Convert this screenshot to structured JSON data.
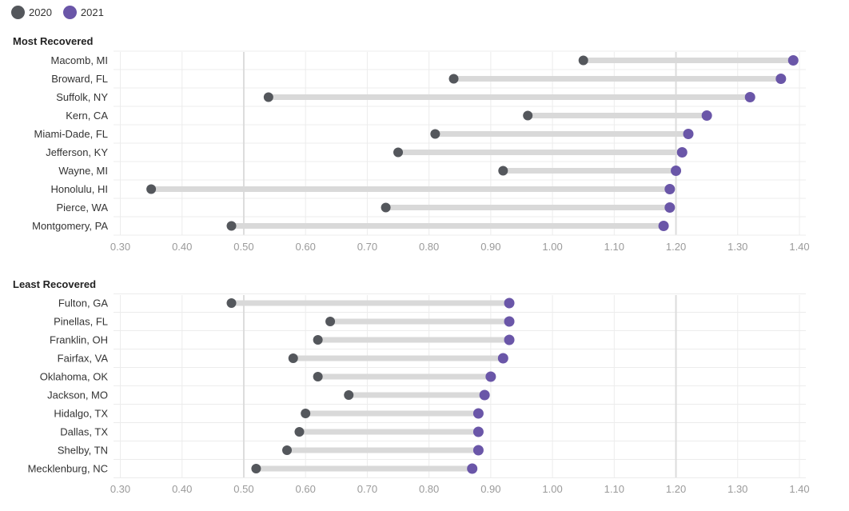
{
  "legend": {
    "items": [
      {
        "label": "2020",
        "color": "#54575c"
      },
      {
        "label": "2021",
        "color": "#6a56a8"
      }
    ]
  },
  "chart_data": [
    {
      "type": "dumbbell",
      "title": "Most Recovered",
      "xlim": [
        0.3,
        1.4
      ],
      "xticks": [
        "0.30",
        "0.40",
        "0.50",
        "0.60",
        "0.70",
        "0.80",
        "0.90",
        "1.00",
        "1.10",
        "1.20",
        "1.30",
        "1.40"
      ],
      "categories": [
        "Macomb, MI",
        "Broward, FL",
        "Suffolk, NY",
        "Kern, CA",
        "Miami-Dade, FL",
        "Jefferson, KY",
        "Wayne, MI",
        "Honolulu, HI",
        "Pierce, WA",
        "Montgomery, PA"
      ],
      "series": [
        {
          "name": "2020",
          "values": [
            1.05,
            0.84,
            0.54,
            0.96,
            0.81,
            0.75,
            0.92,
            0.35,
            0.73,
            0.48
          ]
        },
        {
          "name": "2021",
          "values": [
            1.39,
            1.37,
            1.32,
            1.25,
            1.22,
            1.21,
            1.2,
            1.19,
            1.19,
            1.18
          ]
        }
      ],
      "grid": true
    },
    {
      "type": "dumbbell",
      "title": "Least Recovered",
      "xlim": [
        0.3,
        1.4
      ],
      "xticks": [
        "0.30",
        "0.40",
        "0.50",
        "0.60",
        "0.70",
        "0.80",
        "0.90",
        "1.00",
        "1.10",
        "1.20",
        "1.30",
        "1.40"
      ],
      "categories": [
        "Fulton, GA",
        "Pinellas, FL",
        "Franklin, OH",
        "Fairfax, VA",
        "Oklahoma, OK",
        "Jackson, MO",
        "Hidalgo, TX",
        "Dallas, TX",
        "Shelby, TN",
        "Mecklenburg, NC"
      ],
      "series": [
        {
          "name": "2020",
          "values": [
            0.48,
            0.64,
            0.62,
            0.58,
            0.62,
            0.67,
            0.6,
            0.59,
            0.57,
            0.52
          ]
        },
        {
          "name": "2021",
          "values": [
            0.93,
            0.93,
            0.93,
            0.92,
            0.9,
            0.89,
            0.88,
            0.88,
            0.88,
            0.87
          ]
        }
      ],
      "grid": true
    }
  ]
}
